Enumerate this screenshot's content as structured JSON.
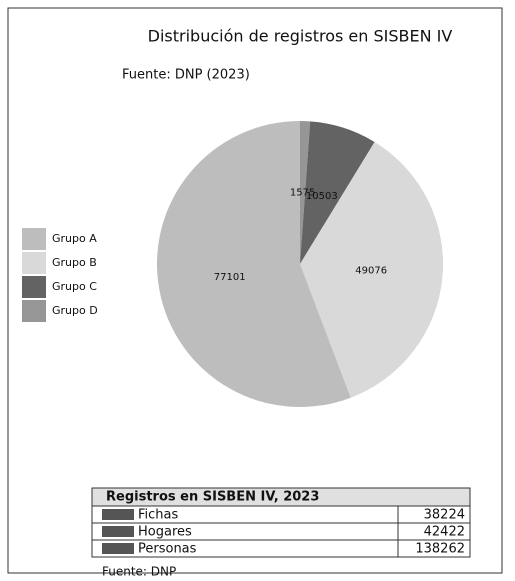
{
  "chart_data": {
    "type": "pie",
    "title": "Distribución de registros en SISBEN IV",
    "subtitle": "Fuente: DNP (2023)",
    "categories": [
      "Grupo A",
      "Grupo B",
      "Grupo C",
      "Grupo D"
    ],
    "values": [
      77101,
      49076,
      10503,
      1575
    ],
    "colors": [
      "#bdbdbd",
      "#d9d9d9",
      "#636363",
      "#969696"
    ],
    "legend": "left"
  },
  "table": {
    "title": "Registros en SISBEN IV, 2023",
    "rows": [
      [
        "Fichas",
        38224
      ],
      [
        "Hogares",
        42422
      ],
      [
        "Personas",
        138262
      ]
    ],
    "source": "Fuente: DNP"
  }
}
